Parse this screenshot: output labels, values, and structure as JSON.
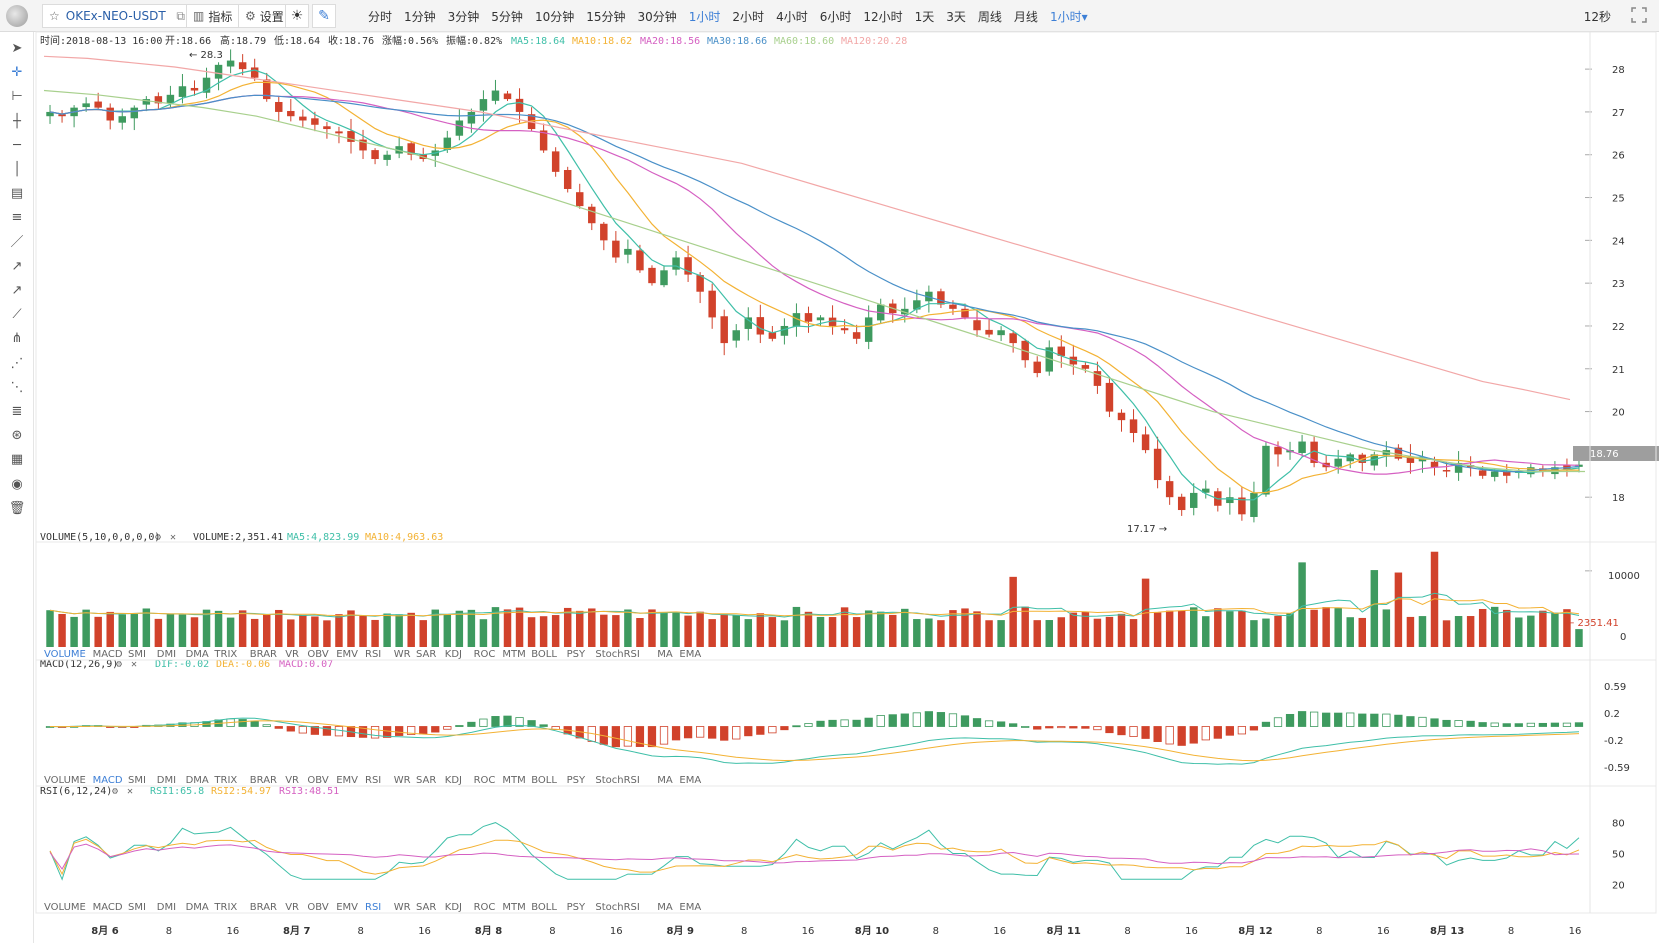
{
  "toolbar": {
    "symbol": "OKEx-NEO-USDT",
    "indicators_label": "指标",
    "settings_label": "设置",
    "intervals": [
      "分时",
      "1分钟",
      "3分钟",
      "5分钟",
      "10分钟",
      "15分钟",
      "30分钟",
      "1小时",
      "2小时",
      "4小时",
      "6小时",
      "12小时",
      "1天",
      "3天",
      "周线",
      "月线",
      "1小时▾"
    ],
    "active_interval": "1小时",
    "countdown": "12秒"
  },
  "tools": [
    "cursor-icon",
    "crosshair-icon",
    "segment-icon",
    "horizontal-ray-icon",
    "horizontal-line-icon",
    "vertical-line-icon",
    "price-line-icon",
    "parallel-channel-icon",
    "trend-line-icon",
    "ray-icon",
    "arrow-line-icon",
    "extended-line-icon",
    "pitchfork-icon",
    "fib-fan-icon",
    "gann-fan-icon",
    "fib-retracement-icon",
    "spiral-icon",
    "pattern-icon",
    "eye-icon",
    "trash-icon"
  ],
  "header": {
    "time": "时间:2018-08-13 16:00",
    "open": "开:18.66",
    "high": "高:18.79",
    "low": "低:18.64",
    "close": "收:18.76",
    "change": "涨幅:0.56%",
    "amplitude": "振幅:0.82%",
    "ma5": "MA5:18.64",
    "ma10": "MA10:18.62",
    "ma20": "MA20:18.56",
    "ma30": "MA30:18.66",
    "ma60": "MA60:18.60",
    "ma120": "MA120:20.28"
  },
  "colors": {
    "up": "#3e9a5f",
    "down": "#d1422b",
    "ma5": "#3fbfa8",
    "ma10": "#f3b234",
    "ma20": "#d560c2",
    "ma30": "#4a90c8",
    "ma60": "#a8d08d",
    "ma120": "#f2a7a7",
    "blue_text": "#3d7fd6"
  },
  "chart_data": [
    {
      "type": "candlestick",
      "x_labels": [
        "8月 6",
        "8",
        "16",
        "8月 7",
        "8",
        "16",
        "8月 8",
        "8",
        "16",
        "8月 9",
        "8",
        "16",
        "8月 10",
        "8",
        "16",
        "8月 11",
        "8",
        "16",
        "8月 12",
        "8",
        "16",
        "8月 13",
        "8",
        "16"
      ],
      "y_ticks": [
        28,
        27,
        26,
        25,
        24,
        23,
        22,
        21,
        20,
        19,
        18
      ],
      "ylim": [
        17.0,
        28.4
      ],
      "annotations": {
        "high": "← 28.3",
        "low": "17.17 →"
      },
      "last_price": "18.76",
      "closes": [
        27.0,
        26.9,
        27.1,
        27.2,
        27.1,
        26.8,
        26.9,
        27.1,
        27.3,
        27.2,
        27.4,
        27.6,
        27.5,
        27.8,
        28.1,
        28.2,
        28.0,
        27.8,
        27.3,
        27.0,
        26.9,
        26.8,
        26.7,
        26.6,
        26.5,
        26.3,
        26.1,
        25.9,
        26.0,
        26.2,
        26.0,
        25.9,
        26.1,
        26.4,
        26.8,
        27.0,
        27.3,
        27.5,
        27.3,
        27.0,
        26.6,
        26.1,
        25.6,
        25.2,
        24.8,
        24.4,
        24.0,
        23.6,
        23.8,
        23.3,
        23.0,
        23.3,
        23.6,
        23.2,
        22.8,
        22.2,
        21.6,
        21.9,
        22.2,
        21.8,
        21.7,
        22.0,
        22.3,
        22.1,
        22.2,
        22.0,
        21.9,
        21.7,
        22.2,
        22.5,
        22.3,
        22.4,
        22.6,
        22.8,
        22.5,
        22.4,
        22.2,
        21.9,
        21.8,
        21.9,
        21.6,
        21.2,
        20.9,
        21.5,
        21.3,
        21.1,
        21.0,
        20.6,
        20.0,
        19.8,
        19.5,
        19.1,
        18.4,
        18.0,
        17.7,
        18.1,
        18.2,
        17.8,
        18.0,
        17.6,
        18.1,
        19.2,
        19.0,
        19.1,
        19.3,
        18.8,
        18.7,
        18.9,
        19.0,
        18.8,
        19.0,
        19.1,
        18.9,
        18.8,
        18.9,
        18.7,
        18.6,
        18.8,
        18.7,
        18.5,
        18.6,
        18.5,
        18.6,
        18.7,
        18.6,
        18.7,
        18.65,
        18.76
      ],
      "ma120": [
        28.3,
        28.25,
        28.15,
        28.05,
        27.9,
        27.75,
        27.6,
        27.45,
        27.3,
        27.15,
        27.0,
        26.8,
        26.6,
        26.4,
        26.2,
        26.0,
        25.8,
        25.5,
        25.2,
        24.9,
        24.6,
        24.3,
        24.0,
        23.7,
        23.4,
        23.1,
        22.8,
        22.5,
        22.2,
        21.9,
        21.6,
        21.3,
        21.0,
        20.7,
        20.5,
        20.28
      ],
      "ma60": [
        27.5,
        27.4,
        27.25,
        27.1,
        26.9,
        26.6,
        26.3,
        26.0,
        25.6,
        25.2,
        24.8,
        24.4,
        24.0,
        23.6,
        23.2,
        22.8,
        22.4,
        22.0,
        21.6,
        21.2,
        20.8,
        20.4,
        20.0,
        19.7,
        19.4,
        19.1,
        18.9,
        18.7,
        18.6,
        18.6
      ]
    },
    {
      "type": "bar",
      "title": "VOLUME(5,10,0,0,0,0)",
      "value": "VOLUME:2,351.41",
      "ma5": "MA5:4,823.99",
      "ma10": "MA10:4,963.63",
      "y_ticks": [
        10000,
        0
      ],
      "last_label": "← 2351.41"
    },
    {
      "type": "bar",
      "title": "MACD(12,26,9)",
      "dif": "DIF:-0.02",
      "dea": "DEA:-0.06",
      "macd": "MACD:0.07",
      "y_ticks": [
        0.59,
        0.2,
        -0.2,
        -0.59
      ]
    },
    {
      "type": "line",
      "title": "RSI(6,12,24)",
      "rsi1": "RSI1:65.8",
      "rsi2": "RSI2:54.97",
      "rsi3": "RSI3:48.51",
      "y_ticks": [
        80,
        50,
        20
      ]
    }
  ],
  "indicator_tabs": [
    "VOLUME",
    "MACD",
    "SMI",
    "DMI",
    "DMA",
    "TRIX",
    "BRAR",
    "VR",
    "OBV",
    "EMV",
    "RSI",
    "WR",
    "SAR",
    "KDJ",
    "ROC",
    "MTM",
    "BOLL",
    "PSY",
    "StochRSI",
    "MA",
    "EMA"
  ]
}
